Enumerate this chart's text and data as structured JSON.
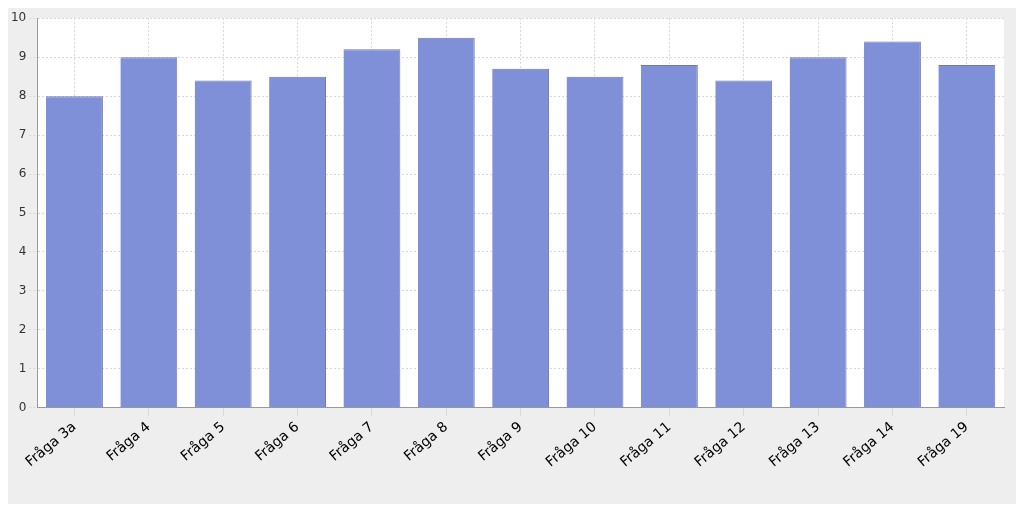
{
  "chart_data": {
    "type": "bar",
    "categories": [
      "Fråga 3a",
      "Fråga 4",
      "Fråga 5",
      "Fråga 6",
      "Fråga 7",
      "Fråga 8",
      "Fråga 9",
      "Fråga 10",
      "Fråga 11",
      "Fråga 12",
      "Fråga 13",
      "Fråga 14",
      "Fråga 19"
    ],
    "series": [
      {
        "color": "#8090d8",
        "values": [
          8.0,
          9.0,
          8.4,
          8.5,
          9.2,
          9.5,
          8.7,
          8.5,
          8.8,
          8.4,
          9.0,
          9.4,
          8.8
        ]
      }
    ],
    "ylim": [
      0,
      10
    ],
    "yticks": [
      0,
      1,
      2,
      3,
      4,
      5,
      6,
      7,
      8,
      9,
      10
    ],
    "grid": true,
    "legend": false
  }
}
